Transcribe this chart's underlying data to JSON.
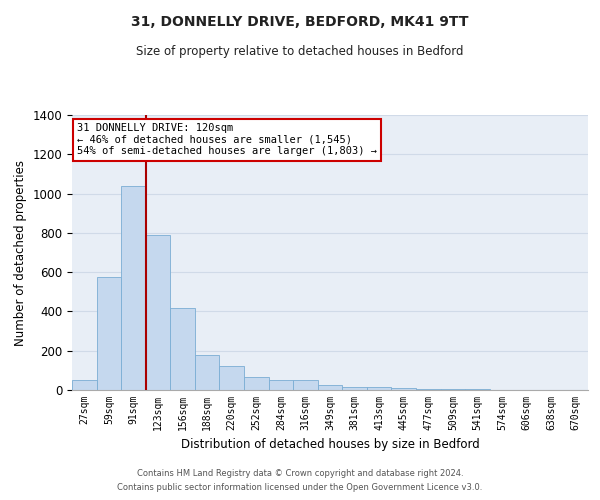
{
  "title": "31, DONNELLY DRIVE, BEDFORD, MK41 9TT",
  "subtitle": "Size of property relative to detached houses in Bedford",
  "xlabel": "Distribution of detached houses by size in Bedford",
  "ylabel": "Number of detached properties",
  "bins": [
    "27sqm",
    "59sqm",
    "91sqm",
    "123sqm",
    "156sqm",
    "188sqm",
    "220sqm",
    "252sqm",
    "284sqm",
    "316sqm",
    "349sqm",
    "381sqm",
    "413sqm",
    "445sqm",
    "477sqm",
    "509sqm",
    "541sqm",
    "574sqm",
    "606sqm",
    "638sqm",
    "670sqm"
  ],
  "values": [
    50,
    575,
    1040,
    790,
    420,
    180,
    120,
    65,
    50,
    50,
    25,
    15,
    15,
    10,
    5,
    5,
    3,
    2,
    1,
    1,
    0
  ],
  "bar_color": "#c5d8ee",
  "bar_edge_color": "#7aadd4",
  "vline_color": "#aa0000",
  "annotation_text": "31 DONNELLY DRIVE: 120sqm\n← 46% of detached houses are smaller (1,545)\n54% of semi-detached houses are larger (1,803) →",
  "annotation_box_color": "#ffffff",
  "annotation_box_edge_color": "#cc0000",
  "ylim": [
    0,
    1400
  ],
  "yticks": [
    0,
    200,
    400,
    600,
    800,
    1000,
    1200,
    1400
  ],
  "grid_color": "#d0dae8",
  "background_color": "#e8eef6",
  "footer_line1": "Contains HM Land Registry data © Crown copyright and database right 2024.",
  "footer_line2": "Contains public sector information licensed under the Open Government Licence v3.0."
}
